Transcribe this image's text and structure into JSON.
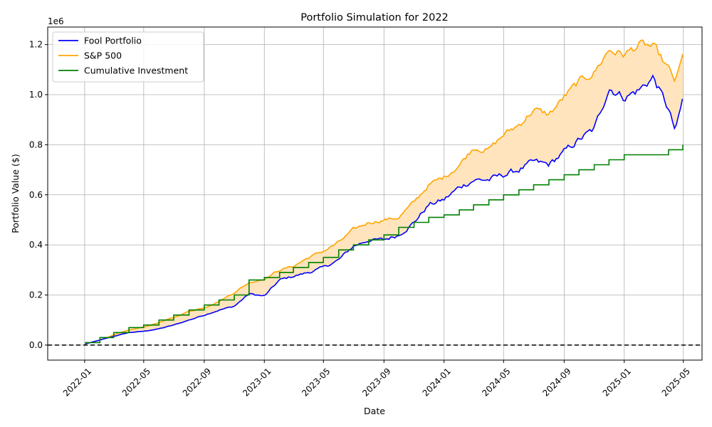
{
  "chart_data": {
    "type": "line",
    "title": "Portfolio Simulation for 2022",
    "xlabel": "Date",
    "ylabel": "Portfolio Value ($)",
    "y_offset_label": "1e6",
    "y_scale_factor": 1000000,
    "xlim": [
      "2021-10-18",
      "2025-06-08"
    ],
    "ylim": [
      -60000,
      1270000
    ],
    "x_ticks": [
      "2022-01",
      "2022-05",
      "2022-09",
      "2023-01",
      "2023-05",
      "2023-09",
      "2024-01",
      "2024-05",
      "2024-09",
      "2025-01",
      "2025-05"
    ],
    "y_ticks": [
      "0.0",
      "0.2",
      "0.4",
      "0.6",
      "0.8",
      "1.0",
      "1.2"
    ],
    "grid": true,
    "legend_position": "top-left",
    "zero_line": {
      "value": 0,
      "style": "dashed",
      "color": "#000000"
    },
    "fill_between": {
      "upper": "S&P 500",
      "lower": "Fool Portfolio",
      "color": "#ffe4bd"
    },
    "series": [
      {
        "name": "Fool Portfolio",
        "color": "#0000ff",
        "x": [
          "2022-01-03",
          "2022-02-01",
          "2022-03-01",
          "2022-04-01",
          "2022-05-01",
          "2022-06-01",
          "2022-07-01",
          "2022-08-01",
          "2022-09-01",
          "2022-10-01",
          "2022-11-01",
          "2022-12-01",
          "2023-01-01",
          "2023-02-01",
          "2023-03-01",
          "2023-04-01",
          "2023-05-01",
          "2023-06-01",
          "2023-07-01",
          "2023-08-01",
          "2023-09-01",
          "2023-10-01",
          "2023-11-01",
          "2023-12-01",
          "2024-01-01",
          "2024-02-01",
          "2024-03-01",
          "2024-04-01",
          "2024-05-01",
          "2024-06-01",
          "2024-07-01",
          "2024-08-01",
          "2024-09-01",
          "2024-10-01",
          "2024-11-01",
          "2024-12-01",
          "2025-01-01",
          "2025-02-01",
          "2025-03-01",
          "2025-04-01",
          "2025-04-15",
          "2025-04-30"
        ],
        "y": [
          5000,
          20000,
          35000,
          50000,
          55000,
          65000,
          80000,
          100000,
          120000,
          140000,
          155000,
          205000,
          195000,
          260000,
          275000,
          290000,
          310000,
          340000,
          395000,
          420000,
          420000,
          440000,
          490000,
          560000,
          580000,
          630000,
          660000,
          660000,
          680000,
          700000,
          730000,
          720000,
          770000,
          820000,
          860000,
          1030000,
          990000,
          1020000,
          1070000,
          940000,
          850000,
          980000
        ]
      },
      {
        "name": "S&P 500",
        "color": "#ffa500",
        "x": [
          "2022-01-03",
          "2022-02-01",
          "2022-03-01",
          "2022-04-01",
          "2022-05-01",
          "2022-06-01",
          "2022-07-01",
          "2022-08-01",
          "2022-09-01",
          "2022-10-01",
          "2022-11-01",
          "2022-12-01",
          "2023-01-01",
          "2023-02-01",
          "2023-03-01",
          "2023-04-01",
          "2023-05-01",
          "2023-06-01",
          "2023-07-01",
          "2023-08-01",
          "2023-09-01",
          "2023-10-01",
          "2023-11-01",
          "2023-12-01",
          "2024-01-01",
          "2024-02-01",
          "2024-03-01",
          "2024-04-01",
          "2024-05-01",
          "2024-06-01",
          "2024-07-01",
          "2024-08-01",
          "2024-09-01",
          "2024-10-01",
          "2024-11-01",
          "2024-12-01",
          "2025-01-01",
          "2025-02-01",
          "2025-03-01",
          "2025-04-01",
          "2025-04-15",
          "2025-04-30"
        ],
        "y": [
          5000,
          20000,
          40000,
          60000,
          72000,
          90000,
          110000,
          135000,
          150000,
          175000,
          210000,
          250000,
          265000,
          300000,
          315000,
          350000,
          375000,
          410000,
          460000,
          490000,
          500000,
          510000,
          570000,
          640000,
          670000,
          720000,
          790000,
          780000,
          840000,
          880000,
          940000,
          920000,
          990000,
          1050000,
          1090000,
          1180000,
          1160000,
          1200000,
          1190000,
          1100000,
          1050000,
          1150000
        ]
      },
      {
        "name": "Cumulative Investment",
        "color": "#008000",
        "step": true,
        "x": [
          "2022-01-03",
          "2022-02-01",
          "2022-03-01",
          "2022-04-01",
          "2022-05-01",
          "2022-06-01",
          "2022-07-01",
          "2022-08-01",
          "2022-09-01",
          "2022-10-01",
          "2022-11-01",
          "2022-12-01",
          "2023-01-01",
          "2023-02-01",
          "2023-03-01",
          "2023-04-01",
          "2023-05-01",
          "2023-06-01",
          "2023-07-01",
          "2023-08-01",
          "2023-09-01",
          "2023-10-01",
          "2023-11-01",
          "2023-12-01",
          "2024-01-01",
          "2024-02-01",
          "2024-03-01",
          "2024-04-01",
          "2024-05-01",
          "2024-06-01",
          "2024-07-01",
          "2024-08-01",
          "2024-09-01",
          "2024-10-01",
          "2024-11-01",
          "2024-12-01",
          "2025-01-01",
          "2025-02-01",
          "2025-03-01",
          "2025-04-01",
          "2025-04-30"
        ],
        "y": [
          10000,
          30000,
          50000,
          70000,
          80000,
          100000,
          120000,
          140000,
          160000,
          180000,
          200000,
          260000,
          270000,
          290000,
          310000,
          330000,
          350000,
          380000,
          400000,
          420000,
          440000,
          470000,
          490000,
          510000,
          520000,
          540000,
          560000,
          580000,
          600000,
          620000,
          640000,
          660000,
          680000,
          700000,
          720000,
          740000,
          760000,
          760000,
          760000,
          780000,
          800000
        ]
      }
    ]
  }
}
